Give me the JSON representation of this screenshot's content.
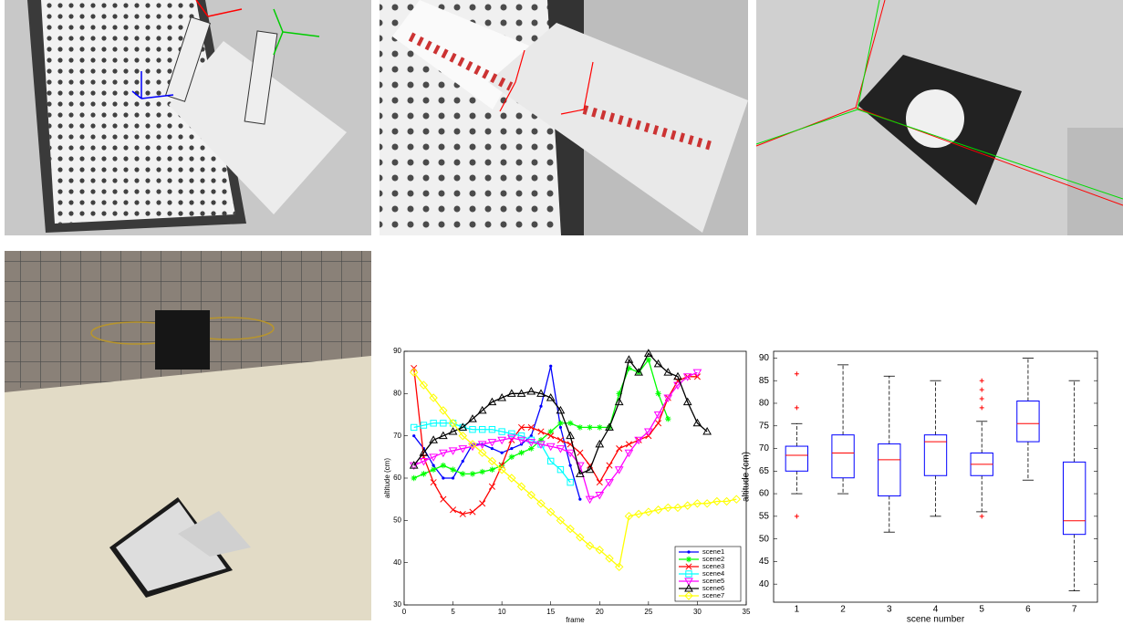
{
  "chart_data": [
    {
      "type": "line",
      "xlabel": "frame",
      "ylabel": "altitude (cm)",
      "xlim": [
        0,
        35
      ],
      "xticks": [
        0,
        5,
        10,
        15,
        20,
        25,
        30,
        35
      ],
      "ylim": [
        30,
        90
      ],
      "yticks": [
        30,
        40,
        50,
        60,
        70,
        80,
        90
      ],
      "legend": "lower right",
      "series": [
        {
          "name": "scene1",
          "color": "#0000ff",
          "marker": "dot",
          "x": [
            1,
            2,
            3,
            4,
            5,
            6,
            7,
            8,
            9,
            10,
            11,
            12,
            13,
            14,
            15,
            16,
            17,
            18
          ],
          "values": [
            70,
            67,
            63,
            60,
            60,
            64,
            68,
            68,
            67,
            66,
            67,
            68,
            70,
            77,
            86.5,
            72,
            63,
            55
          ]
        },
        {
          "name": "scene2",
          "color": "#00ff00",
          "marker": "asterisk",
          "x": [
            1,
            2,
            3,
            4,
            5,
            6,
            7,
            8,
            9,
            10,
            11,
            12,
            13,
            14,
            15,
            16,
            17,
            18,
            19,
            20,
            21,
            22,
            23,
            24,
            25,
            26,
            27
          ],
          "values": [
            60,
            61,
            62,
            63,
            62,
            61,
            61,
            61.5,
            62,
            63,
            65,
            66,
            67,
            69,
            71,
            73,
            73,
            72,
            72,
            72,
            72,
            80,
            86,
            85,
            88,
            80,
            74
          ]
        },
        {
          "name": "scene3",
          "color": "#ff0000",
          "marker": "x",
          "x": [
            1,
            2,
            3,
            4,
            5,
            6,
            7,
            8,
            9,
            10,
            11,
            12,
            13,
            14,
            15,
            16,
            17,
            18,
            19,
            20,
            21,
            22,
            23,
            24,
            25,
            26,
            27,
            28,
            29,
            30
          ],
          "values": [
            86,
            65,
            59,
            55,
            52.5,
            51.5,
            52,
            54,
            58,
            63,
            69,
            72,
            72,
            71,
            70,
            69,
            68,
            66,
            63,
            59,
            63,
            67,
            68,
            69,
            70,
            73,
            79,
            83,
            84,
            84
          ]
        },
        {
          "name": "scene4",
          "color": "#00ffff",
          "marker": "square",
          "x": [
            1,
            2,
            3,
            4,
            5,
            6,
            7,
            8,
            9,
            10,
            11,
            12,
            13,
            14,
            15,
            16,
            17
          ],
          "values": [
            72,
            72.5,
            73,
            73,
            73,
            72,
            71.5,
            71.5,
            71.5,
            71,
            70.5,
            70,
            69,
            68,
            64,
            62,
            59
          ]
        },
        {
          "name": "scene5",
          "color": "#ff00ff",
          "marker": "triangle-down",
          "x": [
            1,
            2,
            3,
            4,
            5,
            6,
            7,
            8,
            9,
            10,
            11,
            12,
            13,
            14,
            15,
            16,
            17,
            18,
            19,
            20,
            21,
            22,
            23,
            24,
            25,
            26,
            27,
            28,
            29,
            30
          ],
          "values": [
            63,
            64,
            65,
            66,
            66.5,
            67,
            67.5,
            68,
            68.5,
            69,
            69.5,
            69,
            68.5,
            68,
            67.5,
            67,
            66,
            63,
            55,
            56,
            59,
            62,
            66,
            69,
            71,
            75,
            79,
            82,
            84,
            85
          ]
        },
        {
          "name": "scene6",
          "color": "#000000",
          "marker": "triangle-up",
          "x": [
            1,
            2,
            3,
            4,
            5,
            6,
            7,
            8,
            9,
            10,
            11,
            12,
            13,
            14,
            15,
            16,
            17,
            18,
            19,
            20,
            21,
            22,
            23,
            24,
            25,
            26,
            27,
            28,
            29,
            30,
            31
          ],
          "values": [
            63,
            66,
            69,
            70,
            71,
            72,
            74,
            76,
            78,
            79,
            80,
            80,
            80.5,
            80,
            79,
            76,
            70,
            61,
            62,
            68,
            72,
            78,
            88,
            85,
            89.5,
            87,
            85,
            84,
            78,
            73,
            71
          ]
        },
        {
          "name": "scene7",
          "color": "#ffff00",
          "marker": "diamond",
          "x": [
            1,
            2,
            3,
            4,
            5,
            6,
            7,
            8,
            9,
            10,
            11,
            12,
            13,
            14,
            15,
            16,
            17,
            18,
            19,
            20,
            21,
            22,
            23,
            24,
            25,
            26,
            27,
            28,
            29,
            30,
            31,
            32,
            33,
            34
          ],
          "values": [
            85,
            82,
            79,
            76,
            73,
            70,
            68,
            66,
            64,
            62,
            60,
            58,
            56,
            54,
            52,
            50,
            48,
            46,
            44,
            43,
            41,
            39,
            51,
            51.5,
            52,
            52.5,
            53,
            53,
            53.5,
            54,
            54,
            54.5,
            54.5,
            55
          ]
        }
      ]
    },
    {
      "type": "box",
      "xlabel": "scene number",
      "ylabel": "altitude (cm)",
      "categories": [
        "1",
        "2",
        "3",
        "4",
        "5",
        "6",
        "7"
      ],
      "ylim": [
        36,
        91.5
      ],
      "yticks": [
        40,
        45,
        50,
        55,
        60,
        65,
        70,
        75,
        80,
        85,
        90
      ],
      "box_color": "#0000ff",
      "median_color": "#ff0000",
      "flier_color": "#ff0000",
      "boxes": [
        {
          "whislo": 60,
          "q1": 65,
          "med": 68.5,
          "q3": 70.5,
          "whishi": 75.5,
          "fliers": [
            55,
            79,
            86.5
          ]
        },
        {
          "whislo": 60,
          "q1": 63.5,
          "med": 69,
          "q3": 73,
          "whishi": 88.5,
          "fliers": []
        },
        {
          "whislo": 51.5,
          "q1": 59.5,
          "med": 67.5,
          "q3": 71,
          "whishi": 86,
          "fliers": []
        },
        {
          "whislo": 55,
          "q1": 64,
          "med": 71.5,
          "q3": 73,
          "whishi": 85,
          "fliers": []
        },
        {
          "whislo": 56,
          "q1": 64,
          "med": 66.5,
          "q3": 69,
          "whishi": 76,
          "fliers": [
            55,
            79,
            81,
            83,
            85
          ]
        },
        {
          "whislo": 63,
          "q1": 71.5,
          "med": 75.5,
          "q3": 80.5,
          "whishi": 90,
          "fliers": []
        },
        {
          "whislo": 38.5,
          "q1": 51,
          "med": 54,
          "q3": 67,
          "whishi": 85,
          "fliers": []
        }
      ]
    }
  ]
}
